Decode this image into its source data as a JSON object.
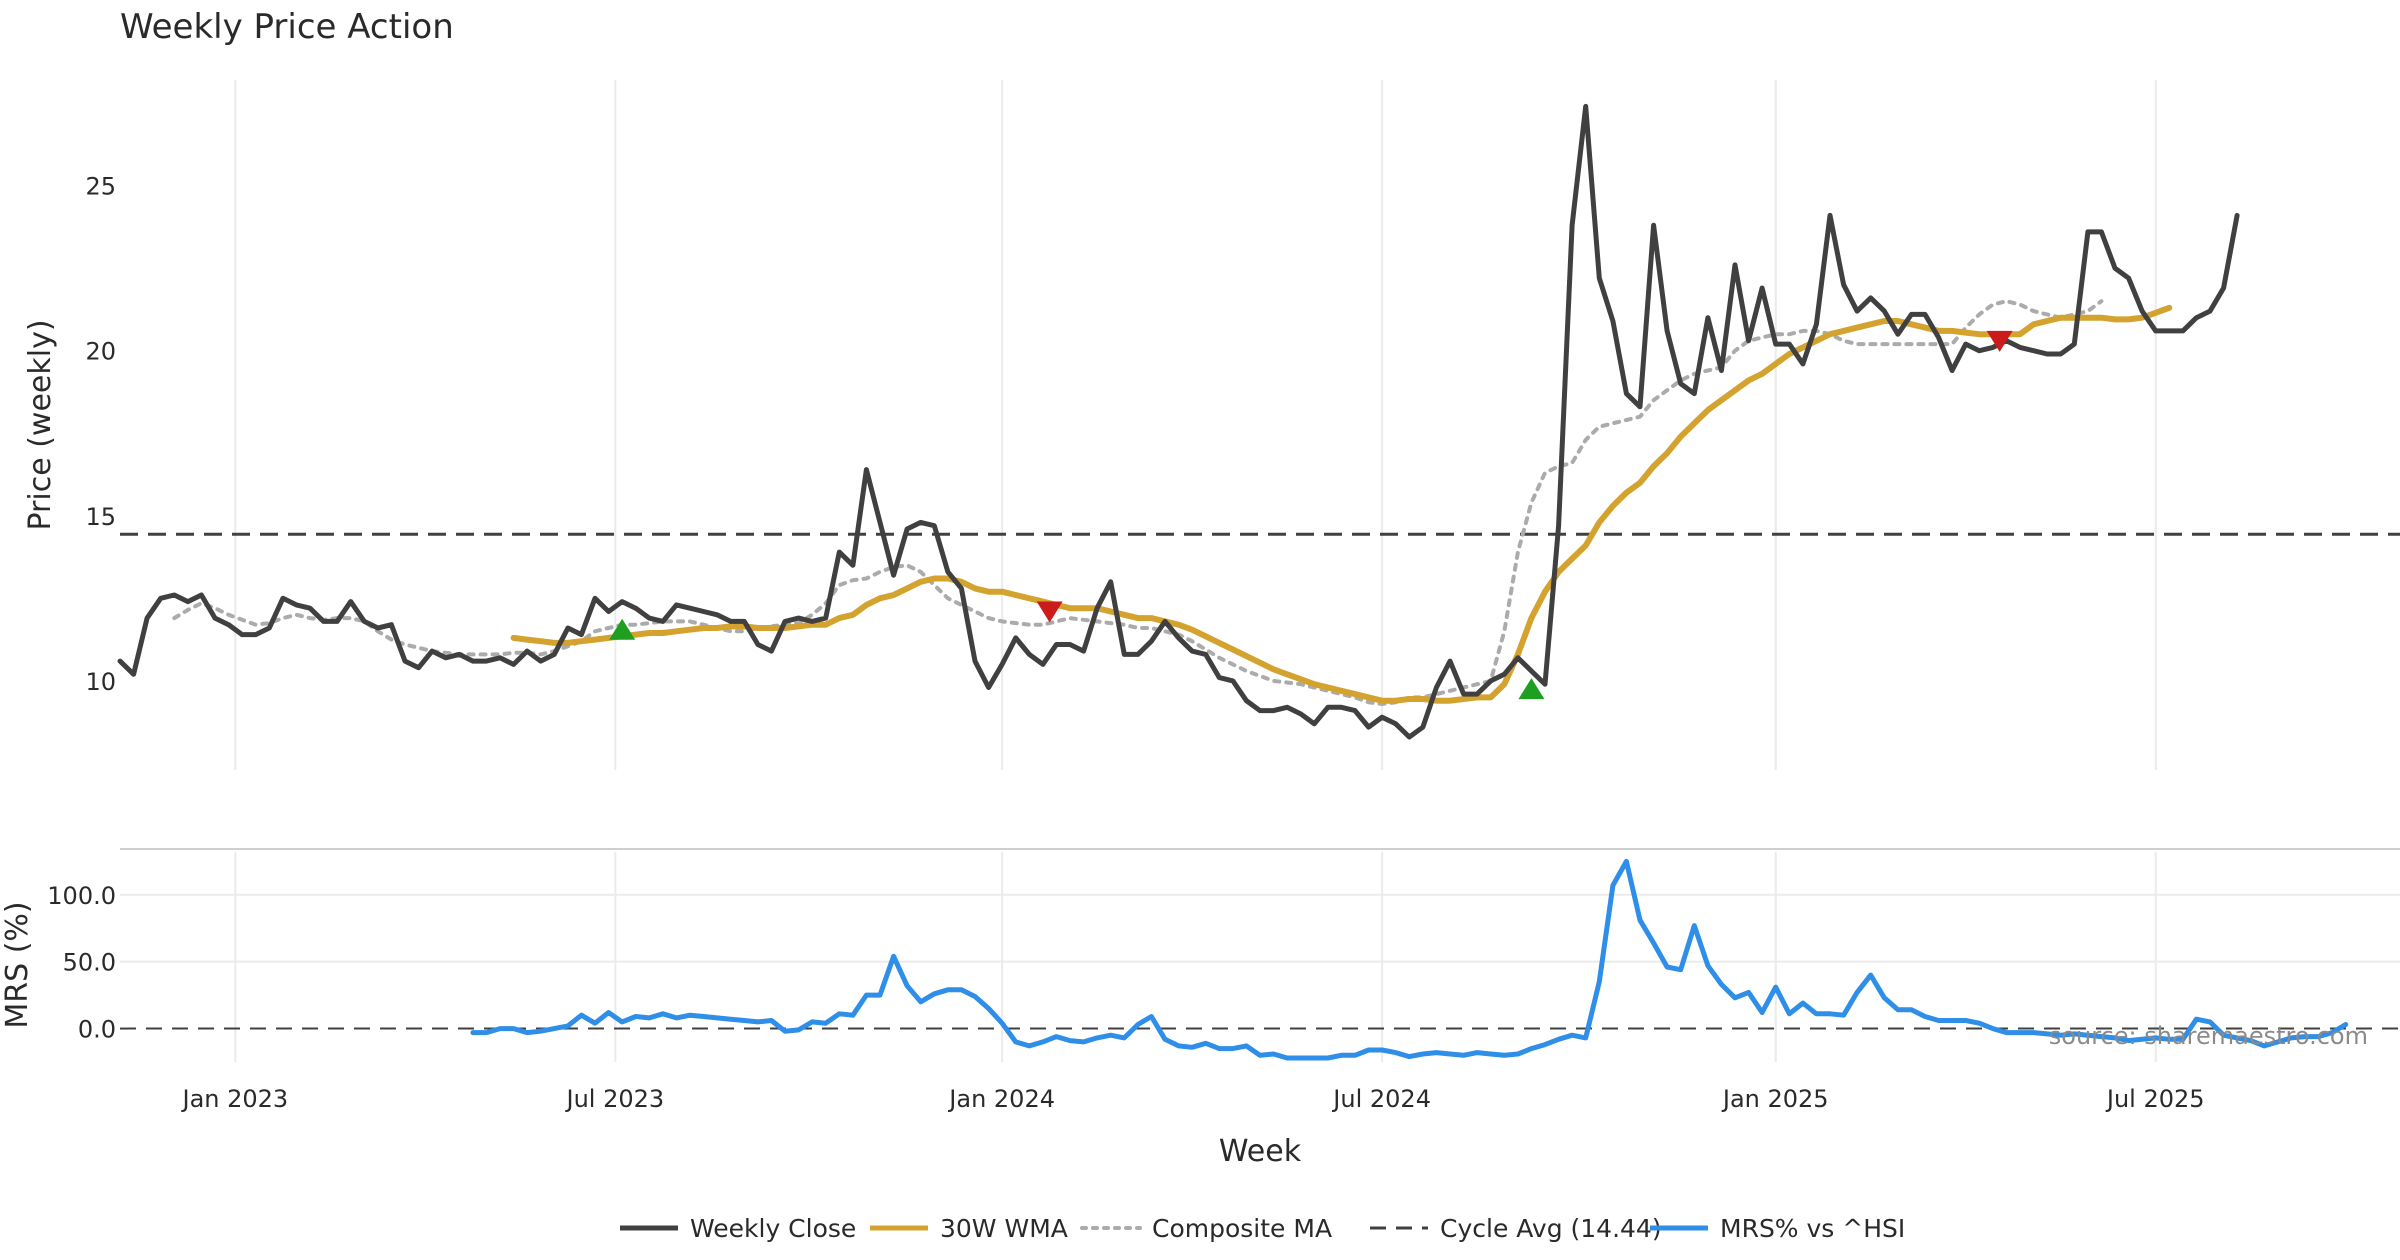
{
  "chart_data": {
    "type": "line",
    "title": "Weekly Price Action",
    "xlabel": "Week",
    "x_ticks": [
      "Jan 2023",
      "Jul 2023",
      "Jan 2024",
      "Jul 2024",
      "Jan 2025",
      "Jul 2025"
    ],
    "x_tick_positions": [
      8.5,
      36.5,
      65,
      93,
      122,
      150
    ],
    "xlim": [
      0,
      168
    ],
    "price_panel": {
      "ylabel": "Price (weekly)",
      "ylim": [
        7.3,
        28.2
      ],
      "y_ticks": [
        "10",
        "15",
        "20",
        "25"
      ],
      "y_tick_values": [
        10,
        15,
        20,
        25
      ],
      "cycle_avg": 14.44,
      "series": [
        {
          "name": "Weekly Close",
          "color": "#404040",
          "style": "solid",
          "start": 0,
          "values": [
            10.6,
            10.2,
            11.9,
            12.5,
            12.6,
            12.4,
            12.6,
            11.9,
            11.7,
            11.4,
            11.4,
            11.6,
            12.5,
            12.3,
            12.2,
            11.8,
            11.8,
            12.4,
            11.8,
            11.6,
            11.7,
            10.6,
            10.4,
            10.9,
            10.7,
            10.8,
            10.6,
            10.6,
            10.7,
            10.5,
            10.9,
            10.6,
            10.8,
            11.6,
            11.4,
            12.5,
            12.1,
            12.4,
            12.2,
            11.9,
            11.8,
            12.3,
            12.2,
            12.1,
            12.0,
            11.8,
            11.8,
            11.1,
            10.9,
            11.8,
            11.9,
            11.8,
            11.9,
            13.9,
            13.5,
            16.4,
            14.8,
            13.2,
            14.6,
            14.8,
            14.7,
            13.3,
            12.8,
            10.6,
            9.8,
            10.5,
            11.3,
            10.8,
            10.5,
            11.1,
            11.1,
            10.9,
            12.2,
            13.0,
            10.8,
            10.8,
            11.2,
            11.8,
            11.3,
            10.9,
            10.8,
            10.1,
            10.0,
            9.4,
            9.1,
            9.1,
            9.2,
            9.0,
            8.7,
            9.2,
            9.2,
            9.1,
            8.6,
            8.9,
            8.7,
            8.3,
            8.6,
            9.8,
            10.6,
            9.6,
            9.6,
            10.0,
            10.2,
            10.7,
            10.3,
            9.9,
            14.7,
            23.8,
            27.4,
            22.2,
            20.9,
            18.7,
            18.3,
            23.8,
            20.6,
            19.0,
            18.7,
            21.0,
            19.4,
            22.6,
            20.3,
            21.9,
            20.2,
            20.2,
            19.6,
            20.8,
            24.1,
            22.0,
            21.2,
            21.6,
            21.2,
            20.5,
            21.1,
            21.1,
            20.4,
            19.4,
            20.2,
            20.0,
            20.1,
            20.3,
            20.1,
            20.0,
            19.9,
            19.9,
            20.2,
            23.6,
            23.6,
            22.5,
            22.2,
            21.2,
            20.6,
            20.6,
            20.6,
            21.0,
            21.2,
            21.9,
            24.1
          ]
        },
        {
          "name": "30W WMA",
          "color": "#d4a32f",
          "style": "solid",
          "start": 29,
          "values": [
            11.3,
            11.25,
            11.2,
            11.15,
            11.15,
            11.2,
            11.25,
            11.3,
            11.35,
            11.4,
            11.45,
            11.45,
            11.5,
            11.55,
            11.6,
            11.6,
            11.65,
            11.65,
            11.6,
            11.6,
            11.6,
            11.65,
            11.7,
            11.7,
            11.9,
            12.0,
            12.3,
            12.5,
            12.6,
            12.8,
            13.0,
            13.1,
            13.1,
            13.0,
            12.8,
            12.7,
            12.7,
            12.6,
            12.5,
            12.4,
            12.3,
            12.2,
            12.2,
            12.2,
            12.1,
            12.0,
            11.9,
            11.9,
            11.8,
            11.7,
            11.55,
            11.35,
            11.15,
            10.95,
            10.75,
            10.55,
            10.35,
            10.2,
            10.05,
            9.9,
            9.8,
            9.7,
            9.6,
            9.5,
            9.4,
            9.4,
            9.45,
            9.45,
            9.4,
            9.4,
            9.45,
            9.5,
            9.5,
            9.9,
            10.8,
            11.9,
            12.7,
            13.3,
            13.7,
            14.1,
            14.8,
            15.3,
            15.7,
            16.0,
            16.5,
            16.9,
            17.4,
            17.8,
            18.2,
            18.5,
            18.8,
            19.1,
            19.3,
            19.6,
            19.9,
            20.1,
            20.3,
            20.5,
            20.6,
            20.7,
            20.8,
            20.9,
            20.9,
            20.8,
            20.7,
            20.6,
            20.6,
            20.55,
            20.5,
            20.5,
            20.5,
            20.5,
            20.8,
            20.9,
            21.0,
            21.0,
            21.0,
            21.0,
            20.95,
            20.95,
            21.0,
            21.15,
            21.3
          ]
        },
        {
          "name": "Composite MA",
          "color": "#ababab",
          "style": "dotted",
          "start": 4,
          "values": [
            11.9,
            12.15,
            12.35,
            12.2,
            12.0,
            11.85,
            11.7,
            11.75,
            11.9,
            12.0,
            11.9,
            11.85,
            11.9,
            11.9,
            11.8,
            11.5,
            11.25,
            11.1,
            11.0,
            10.9,
            10.85,
            10.8,
            10.8,
            10.8,
            10.8,
            10.85,
            10.85,
            10.8,
            10.9,
            11.05,
            11.2,
            11.5,
            11.6,
            11.7,
            11.7,
            11.75,
            11.8,
            11.8,
            11.8,
            11.7,
            11.6,
            11.5,
            11.5,
            11.6,
            11.65,
            11.7,
            11.75,
            12.0,
            12.35,
            12.9,
            13.05,
            13.1,
            13.3,
            13.45,
            13.5,
            13.3,
            12.9,
            12.5,
            12.3,
            12.1,
            11.9,
            11.8,
            11.75,
            11.7,
            11.7,
            11.8,
            11.9,
            11.85,
            11.8,
            11.75,
            11.7,
            11.6,
            11.6,
            11.5,
            11.4,
            11.2,
            10.95,
            10.7,
            10.5,
            10.3,
            10.15,
            10.0,
            9.95,
            9.9,
            9.8,
            9.7,
            9.6,
            9.5,
            9.35,
            9.3,
            9.35,
            9.5,
            9.5,
            9.6,
            9.7,
            9.8,
            9.9,
            10.0,
            11.5,
            13.9,
            15.4,
            16.3,
            16.5,
            16.6,
            17.3,
            17.7,
            17.8,
            17.9,
            18.0,
            18.5,
            18.8,
            19.1,
            19.3,
            19.4,
            19.5,
            20.0,
            20.3,
            20.4,
            20.5,
            20.5,
            20.6,
            20.6,
            20.5,
            20.3,
            20.2,
            20.2,
            20.2,
            20.2,
            20.2,
            20.2,
            20.2,
            20.2,
            20.7,
            21.1,
            21.4,
            21.5,
            21.4,
            21.2,
            21.1,
            21.0,
            21.1,
            21.2,
            21.5
          ]
        }
      ],
      "signals": [
        {
          "type": "buy",
          "color": "#1f9f1f",
          "week": 37,
          "value": 11.55
        },
        {
          "type": "sell",
          "color": "#cc1b1b",
          "week": 68.5,
          "value": 12.1
        },
        {
          "type": "buy",
          "color": "#1f9f1f",
          "week": 104,
          "value": 9.75
        },
        {
          "type": "sell",
          "color": "#cc1b1b",
          "week": 138.5,
          "value": 20.3
        }
      ]
    },
    "mrs_panel": {
      "ylabel": "MRS (%)",
      "ylim": [
        -25,
        132
      ],
      "y_ticks": [
        "100.0",
        "50.0",
        "0.0"
      ],
      "y_tick_values": [
        100,
        50,
        0
      ],
      "series": [
        {
          "name": "MRS% vs ^HSI",
          "color": "#2e8ee8",
          "style": "solid",
          "start": 26,
          "values": [
            -3,
            -3,
            0,
            0,
            -3,
            -2,
            0,
            2,
            10,
            4,
            12,
            5,
            9,
            8,
            11,
            8,
            10,
            9,
            8,
            7,
            6,
            5,
            6,
            -2,
            -1,
            5,
            4,
            11,
            10,
            25,
            25,
            54,
            32,
            20,
            26,
            29,
            29,
            24,
            15,
            4,
            -10,
            -13,
            -10,
            -6,
            -9,
            -10,
            -7,
            -5,
            -7,
            3,
            9,
            -8,
            -13,
            -14,
            -11,
            -15,
            -15,
            -13,
            -20,
            -19,
            -22,
            -22,
            -22,
            -22,
            -20,
            -20,
            -16,
            -16,
            -18,
            -21,
            -19,
            -18,
            -19,
            -20,
            -18,
            -19,
            -20,
            -19,
            -15,
            -12,
            -8,
            -5,
            -7,
            35,
            107,
            125,
            81,
            64,
            46,
            44,
            77,
            47,
            33,
            23,
            27,
            12,
            31,
            11,
            19,
            11,
            11,
            10,
            27,
            40,
            23,
            14,
            14,
            9,
            6,
            6,
            6,
            4,
            0,
            -3,
            -3,
            -3,
            -4,
            -5,
            -4,
            -5,
            -6,
            -7,
            -9,
            -8,
            -7,
            -8,
            -8,
            7,
            5,
            -5,
            -7,
            -9,
            -13,
            -10,
            -7,
            -6,
            -6,
            -3,
            3
          ]
        }
      ]
    },
    "legend": [
      {
        "label": "Weekly Close",
        "color": "#404040",
        "style": "solid"
      },
      {
        "label": "30W WMA",
        "color": "#d4a32f",
        "style": "solid"
      },
      {
        "label": "Composite MA",
        "color": "#ababab",
        "style": "dotted"
      },
      {
        "label": "Cycle Avg (14.44)",
        "color": "#404040",
        "style": "dashed"
      },
      {
        "label": "MRS% vs ^HSI",
        "color": "#2e8ee8",
        "style": "solid"
      }
    ],
    "watermark": "source: sharemaestro.com"
  }
}
